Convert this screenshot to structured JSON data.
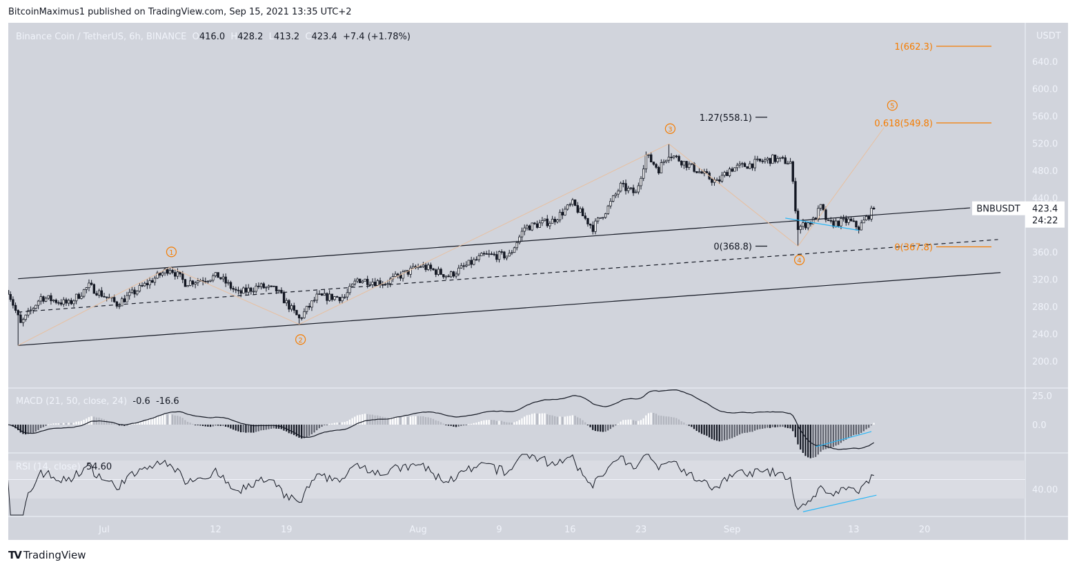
{
  "header": {
    "published": "BitcoinMaximus1 published on TradingView.com, Sep 15, 2021 13:35 UTC+2",
    "symbol_title": "Binance Coin / TetherUS, 6h, BINANCE",
    "ohlc": {
      "o_label": "O",
      "o": "416.0",
      "h_label": "H",
      "h": "428.2",
      "l_label": "L",
      "l": "413.2",
      "c_label": "C",
      "c": "423.4",
      "change": "+7.4 (+1.78%)"
    }
  },
  "price_axis": {
    "currency": "USDT",
    "ticks": [
      "640.0",
      "600.0",
      "560.0",
      "520.0",
      "480.0",
      "440.0",
      "400.0",
      "360.0",
      "320.0",
      "280.0",
      "240.0",
      "200.0"
    ],
    "tick_values": [
      640,
      600,
      560,
      520,
      480,
      440,
      400,
      360,
      320,
      280,
      240,
      200
    ]
  },
  "last_price": {
    "symbol": "BNBUSDT",
    "price": "423.4",
    "countdown": "24:22"
  },
  "time_axis": {
    "labels": [
      "Jul",
      "12",
      "19",
      "Aug",
      "9",
      "16",
      "23",
      "Sep",
      "13",
      "20"
    ],
    "dates": [
      "2021-07-01",
      "2021-07-12",
      "2021-07-19",
      "2021-08-01",
      "2021-08-09",
      "2021-08-16",
      "2021-08-23",
      "2021-09-01",
      "2021-09-13",
      "2021-09-20"
    ]
  },
  "macd": {
    "title": "MACD (21, 50, close, 24)",
    "values": [
      "-0.6",
      "-16.6"
    ],
    "ticks": [
      "25.0",
      "0.0"
    ],
    "tick_values": [
      25,
      0
    ]
  },
  "rsi": {
    "title": "RSI (14, close)",
    "value": "54.60",
    "ticks": [
      "40.00"
    ],
    "tick_values": [
      40
    ],
    "band": [
      30,
      70
    ]
  },
  "footer": {
    "logo": "TradingView"
  },
  "colors": {
    "background": "#d1d4dc",
    "fib_orange": "#f57c00",
    "wave_line": "#e8bf9f",
    "divergence_blue": "#29b6f6",
    "candle_up": "#ffffff",
    "candle_down": "#131722"
  },
  "chart_data": {
    "type": "candlestick",
    "interval": "6h",
    "ylim": [
      200,
      660
    ],
    "price_path": [
      [
        "2021-06-21T12",
        304
      ],
      [
        "2021-06-22T18",
        254
      ],
      [
        "2021-06-24T18",
        294
      ],
      [
        "2021-06-27T12",
        284
      ],
      [
        "2021-06-29T12",
        310
      ],
      [
        "2021-07-02T06",
        284
      ],
      [
        "2021-07-04T06",
        304
      ],
      [
        "2021-07-07T12",
        337
      ],
      [
        "2021-07-09T00",
        315
      ],
      [
        "2021-07-12T06",
        325
      ],
      [
        "2021-07-14T06",
        299
      ],
      [
        "2021-07-16T06",
        310
      ],
      [
        "2021-07-18T00",
        304
      ],
      [
        "2021-07-20T06",
        262
      ],
      [
        "2021-07-22T00",
        294
      ],
      [
        "2021-07-24T18",
        294
      ],
      [
        "2021-07-26T00",
        320
      ],
      [
        "2021-07-28T18",
        315
      ],
      [
        "2021-08-01T06",
        340
      ],
      [
        "2021-08-04T00",
        325
      ],
      [
        "2021-08-07T12",
        355
      ],
      [
        "2021-08-10T00",
        355
      ],
      [
        "2021-08-11T12",
        396
      ],
      [
        "2021-08-14T06",
        406
      ],
      [
        "2021-08-16T06",
        431
      ],
      [
        "2021-08-18T06",
        396
      ],
      [
        "2021-08-19T18",
        426
      ],
      [
        "2021-08-21T00",
        457
      ],
      [
        "2021-08-22T12",
        446
      ],
      [
        "2021-08-23T12",
        502
      ],
      [
        "2021-08-24T18",
        482
      ],
      [
        "2021-08-25T18",
        505
      ],
      [
        "2021-08-27T18",
        487
      ],
      [
        "2021-08-30T12",
        462
      ],
      [
        "2021-08-31T18",
        482
      ],
      [
        "2021-09-02T06",
        487
      ],
      [
        "2021-09-05T00",
        497
      ],
      [
        "2021-09-06T18",
        492
      ],
      [
        "2021-09-07T06",
        426
      ],
      [
        "2021-09-07T12",
        396
      ],
      [
        "2021-09-09T00",
        406
      ],
      [
        "2021-09-09T18",
        426
      ],
      [
        "2021-09-10T12",
        401
      ],
      [
        "2021-09-12T12",
        406
      ],
      [
        "2021-09-13T12",
        396
      ],
      [
        "2021-09-15T00",
        423.4
      ]
    ],
    "channel": {
      "upper": [
        [
          "2021-06-22T12",
          321
        ],
        [
          "2021-09-24T12",
          425
        ]
      ],
      "median": [
        [
          "2021-06-22T12",
          272
        ],
        [
          "2021-09-27T06",
          378.5
        ]
      ],
      "lower": [
        [
          "2021-06-22T12",
          223
        ],
        [
          "2021-09-27T12",
          330
        ]
      ]
    },
    "elliott_waves": [
      {
        "label": "",
        "date": "2021-06-22T12",
        "price": 223
      },
      {
        "label": "1",
        "date": "2021-07-07T12",
        "price": 338
      },
      {
        "label": "2",
        "date": "2021-07-20T06",
        "price": 254
      },
      {
        "label": "3",
        "date": "2021-08-25T18",
        "price": 519
      },
      {
        "label": "4",
        "date": "2021-09-07T12",
        "price": 368.8
      },
      {
        "label": "5",
        "date": "2021-09-16T00",
        "price": 543
      }
    ],
    "fib_levels_orange": [
      {
        "text": "1(662.3)",
        "price": 662.3
      },
      {
        "text": "0.618(549.8)",
        "price": 549.8
      },
      {
        "text": "0(367.8)",
        "price": 367.8
      }
    ],
    "fib_levels_black": [
      {
        "text": "1.27(558.1)",
        "price": 558.1
      },
      {
        "text": "0(368.8)",
        "price": 368.8
      }
    ],
    "divergence_lines": {
      "price": [
        [
          "2021-09-06T06",
          410
        ],
        [
          "2021-09-13T12",
          392
        ]
      ],
      "macd": [
        [
          "2021-09-09T06",
          -19
        ],
        [
          "2021-09-14T18",
          -6
        ]
      ],
      "rsi": [
        [
          "2021-09-08T00",
          16
        ],
        [
          "2021-09-15T06",
          33.5
        ]
      ]
    }
  }
}
